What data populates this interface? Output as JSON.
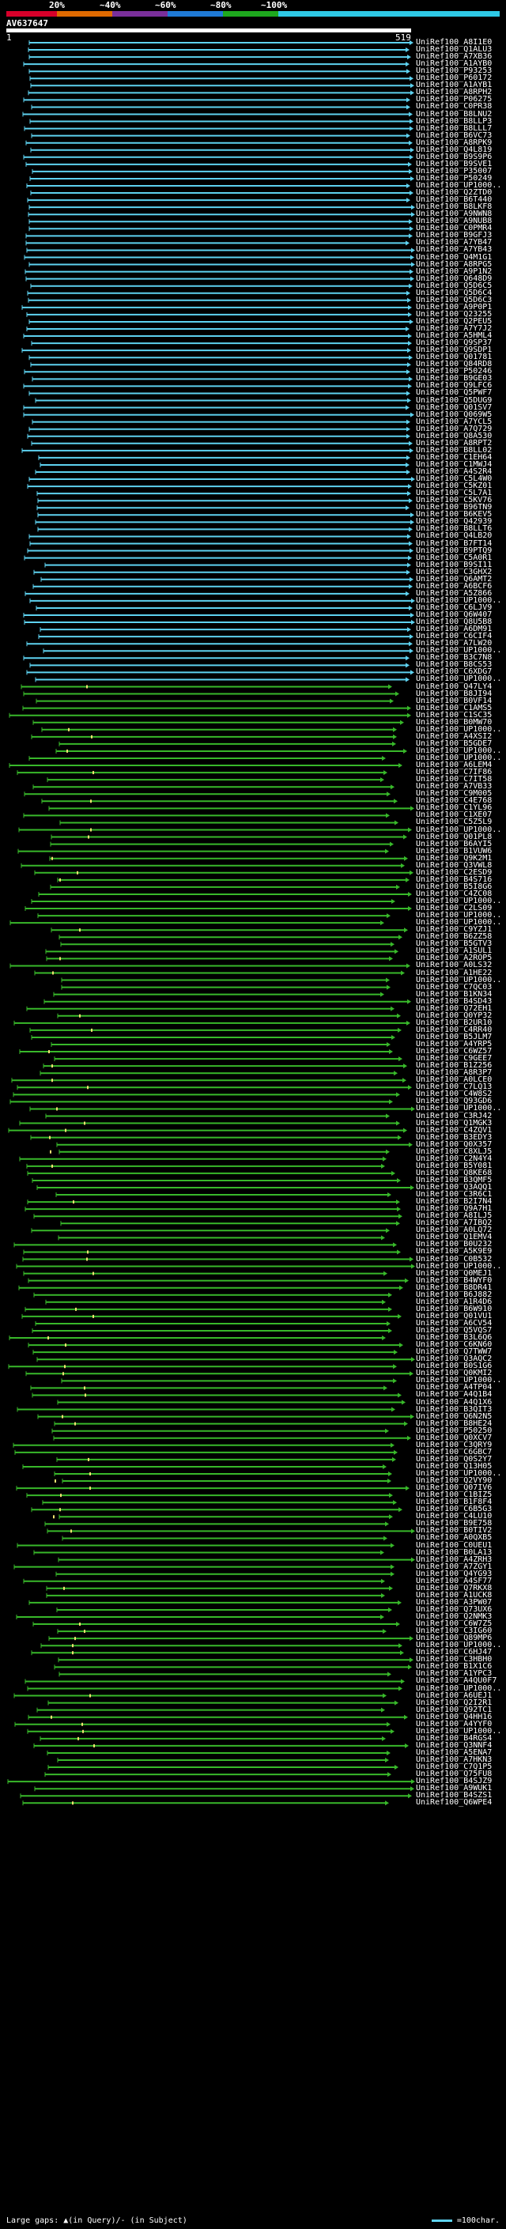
{
  "colors": {
    "background": "#000000",
    "text": "#ffffff",
    "query_bar": "#ffffff",
    "scale": [
      "#d7002a",
      "#e06a00",
      "#7a2f9a",
      "#1f7ad6",
      "#1ea81e",
      "#2ec9e6"
    ],
    "hit_high": "#5ed2f0",
    "hit_low": "#38b82a",
    "gap_marker": "#f0e070"
  },
  "scale_labels": [
    "20%",
    "~40%",
    "~60%",
    "~80%",
    "~100%"
  ],
  "query": {
    "id": "AV637647",
    "start": "1",
    "end": "519",
    "length": 519
  },
  "hits": [
    "UniRef100_A8I1E0",
    "UniRef100_Q1ALU3",
    "UniRef100_A7XB36",
    "UniRef100_A1AYB0",
    "UniRef100_P93253",
    "UniRef100_P60172",
    "UniRef100_A1AYB1",
    "UniRef100_A8RPH2",
    "UniRef100_P06275",
    "UniRef100_C0PR38",
    "UniRef100_B8LNU2",
    "UniRef100_B8LLP3",
    "UniRef100_B8LLL7",
    "UniRef100_B6VC73",
    "UniRef100_A8RPK9",
    "UniRef100_Q4L819",
    "UniRef100_B9S9P6",
    "UniRef100_B9SVE1",
    "UniRef100_P35007",
    "UniRef100_P50249",
    "UniRef100_UP1000..",
    "UniRef100_Q2ZTD0",
    "UniRef100_B6T440",
    "UniRef100_B8LKF8",
    "UniRef100_A9NWN8",
    "UniRef100_A9NUB8",
    "UniRef100_C0PMR4",
    "UniRef100_B9GFJ3",
    "UniRef100_A7YB47",
    "UniRef100_A7YB43",
    "UniRef100_Q4M1G1",
    "UniRef100_A8RPG5",
    "UniRef100_A9P1N2",
    "UniRef100_Q648D9",
    "UniRef100_Q5D6C5",
    "UniRef100_Q5D6C4",
    "UniRef100_Q5D6C3",
    "UniRef100_A9P0P1",
    "UniRef100_Q23255",
    "UniRef100_Q2PEU5",
    "UniRef100_A7Y7J2",
    "UniRef100_A5HML4",
    "UniRef100_Q9SP37",
    "UniRef100_Q9SDP1",
    "UniRef100_Q01781",
    "UniRef100_Q84RD8",
    "UniRef100_P50246",
    "UniRef100_B9GE03",
    "UniRef100_Q9LFC6",
    "UniRef100_Q5PWF7",
    "UniRef100_Q5DUG9",
    "UniRef100_Q01SV7",
    "UniRef100_Q069W5",
    "UniRef100_A7YCL5",
    "UniRef100_A7Q729",
    "UniRef100_Q8A530",
    "UniRef100_A8RPT2",
    "UniRef100_B8LL02",
    "UniRef100_C1EH64",
    "UniRef100_C1MWJ4",
    "UniRef100_A4S2R4",
    "UniRef100_C5L4W0",
    "UniRef100_C5KZ01",
    "UniRef100_C5L7A1",
    "UniRef100_C5KV76",
    "UniRef100_B96TN9",
    "UniRef100_B6KEV5",
    "UniRef100_Q42939",
    "UniRef100_B8LLT6",
    "UniRef100_Q4LB20",
    "UniRef100_B7FT14",
    "UniRef100_B9PTQ9",
    "UniRef100_C5A0R1",
    "UniRef100_B9SI11",
    "UniRef100_C3GHX2",
    "UniRef100_Q6AMT2",
    "UniRef100_A6BCF6",
    "UniRef100_A5Z866",
    "UniRef100_UP1000..",
    "UniRef100_C6LJV9",
    "UniRef100_Q6W407",
    "UniRef100_Q8U5B8",
    "UniRef100_A6DM91",
    "UniRef100_C6CIF4",
    "UniRef100_A7LW20",
    "UniRef100_UP1000..",
    "UniRef100_B3C7N8",
    "UniRef100_B8CS53",
    "UniRef100_C6XDG7",
    "UniRef100_UP1000..",
    "UniRef100_Q47LY4",
    "UniRef100_B8JI94",
    "UniRef100_B0VF14",
    "UniRef100_C1AMS5",
    "UniRef100_C1SC35",
    "UniRef100_B0MW70",
    "UniRef100_UP1000..",
    "UniRef100_A4XSI2",
    "UniRef100_B5GDE7",
    "UniRef100_UP1000..",
    "UniRef100_UP1000..",
    "UniRef100_A6LEM4",
    "UniRef100_C7IF86",
    "UniRef100_C7IT58",
    "UniRef100_A7VB33",
    "UniRef100_C9M005",
    "UniRef100_C4E768",
    "UniRef100_C1YL96",
    "UniRef100_C1XE07",
    "UniRef100_C5Z5L9",
    "UniRef100_UP1000..",
    "UniRef100_Q01PL8",
    "UniRef100_B6AYI5",
    "UniRef100_B1VUW6",
    "UniRef100_Q9K2M1",
    "UniRef100_Q3VWL8",
    "UniRef100_C2ESD9",
    "UniRef100_B4S716",
    "UniRef100_B5I8G6",
    "UniRef100_C4ZC08",
    "UniRef100_UP1000..",
    "UniRef100_C2LS09",
    "UniRef100_UP1000..",
    "UniRef100_UP1000..",
    "UniRef100_C9YZJ1",
    "UniRef100_B6ZZ58",
    "UniRef100_B5GTV3",
    "UniRef100_A1SUL1",
    "UniRef100_A2ROP5",
    "UniRef100_A0LS32",
    "UniRef100_A1HE22",
    "UniRef100_UP1000..",
    "UniRef100_C7QC03",
    "UniRef100_B1KN34",
    "UniRef100_B4SD43",
    "UniRef100_Q72EH1",
    "UniRef100_Q0YP32",
    "UniRef100_B2UR10",
    "UniRef100_C4RR40",
    "UniRef100_B5JLM7",
    "UniRef100_A4YRP5",
    "UniRef100_C6WZ57",
    "UniRef100_C9GEE7",
    "UniRef100_B1Z256",
    "UniRef100_A8R3P7",
    "UniRef100_A0LCE0",
    "UniRef100_C7LQ13",
    "UniRef100_C4W8S2",
    "UniRef100_Q93GD6",
    "UniRef100_UP1000..",
    "UniRef100_C3RJ42",
    "UniRef100_Q1MGK3",
    "UniRef100_C4ZQV1",
    "UniRef100_B3EDY3",
    "UniRef100_Q0X357",
    "UniRef100_C8XLJ5",
    "UniRef100_C2N4Y4",
    "UniRef100_B5Y081",
    "UniRef100_Q8KE68",
    "UniRef100_B3QMF5",
    "UniRef100_Q3AQQ1",
    "UniRef100_C3R6C1",
    "UniRef100_B2I7N4",
    "UniRef100_Q9A7H1",
    "UniRef100_A8ILJ5",
    "UniRef100_A7IBQ2",
    "UniRef100_A0LQ72",
    "UniRef100_Q1EMV4",
    "UniRef100_B0U232",
    "UniRef100_A5K9E9",
    "UniRef100_C0B532",
    "UniRef100_UP1000..",
    "UniRef100_Q0MEJ1",
    "UniRef100_B4WYF0",
    "UniRef100_B8DR41",
    "UniRef100_B6J882",
    "UniRef100_A1R4D6",
    "UniRef100_B6W910",
    "UniRef100_Q01VU1",
    "UniRef100_A6CV54",
    "UniRef100_Q5VQS7",
    "UniRef100_B3L6Q6",
    "UniRef100_C6KN60",
    "UniRef100_Q7TWW7",
    "UniRef100_Q3AQC2",
    "UniRef100_B0S1G6",
    "UniRef100_Q0KMI2",
    "UniRef100_UP1000..",
    "UniRef100_A4TP04",
    "UniRef100_A4Q1B4",
    "UniRef100_A4Q1X6",
    "UniRef100_B3QIT3",
    "UniRef100_Q6N2N5",
    "UniRef100_B8HE24",
    "UniRef100_P50250",
    "UniRef100_Q0XCV7",
    "UniRef100_C3QRY9",
    "UniRef100_C6GBC7",
    "UniRef100_Q0S2Y7",
    "UniRef100_Q13H05",
    "UniRef100_UP1000..",
    "UniRef100_Q2VY90",
    "UniRef100_Q07IV6",
    "UniRef100_C1BIZ5",
    "UniRef100_B1F8F4",
    "UniRef100_C6B5G3",
    "UniRef100_C4LU10",
    "UniRef100_B9E758",
    "UniRef100_B0TIV2",
    "UniRef100_A0QXB5",
    "UniRef100_C0UEU1",
    "UniRef100_B0LA13",
    "UniRef100_A4ZRH3",
    "UniRef100_A7ZGY1",
    "UniRef100_Q4YG93",
    "UniRef100_A4SF77",
    "UniRef100_Q7RKX8",
    "UniRef100_A1UCK8",
    "UniRef100_A3PW07",
    "UniRef100_Q73UX6",
    "UniRef100_Q2NMK3",
    "UniRef100_C6W7Z5",
    "UniRef100_C3IG60",
    "UniRef100_Q89MP6",
    "UniRef100_UP1000..",
    "UniRef100_C6HJ47",
    "UniRef100_C3HBH0",
    "UniRef100_B1X1C6",
    "UniRef100_A1YPC3",
    "UniRef100_A4QU0F7",
    "UniRef100_UP1000..",
    "UniRef100_A6UEJ1",
    "UniRef100_Q2I2R1",
    "UniRef100_Q92TC1",
    "UniRef100_Q4HH16",
    "UniRef100_A4YYF0",
    "UniRef100_UP1000..",
    "UniRef100_B4RGS4",
    "UniRef100_Q3NNF4",
    "UniRef100_A5ENA7",
    "UniRef100_A7HKN3",
    "UniRef100_C7Q1P5",
    "UniRef100_Q75FU8",
    "UniRef100_B4SJZ9",
    "UniRef100_A9WUK1",
    "UniRef100_B4SZS1",
    "UniRef100_Q6WPE4"
  ],
  "footer": {
    "legend_left": "Large gaps: ▲(in Query)/- (in Subject)",
    "legend_right": "=100char."
  }
}
